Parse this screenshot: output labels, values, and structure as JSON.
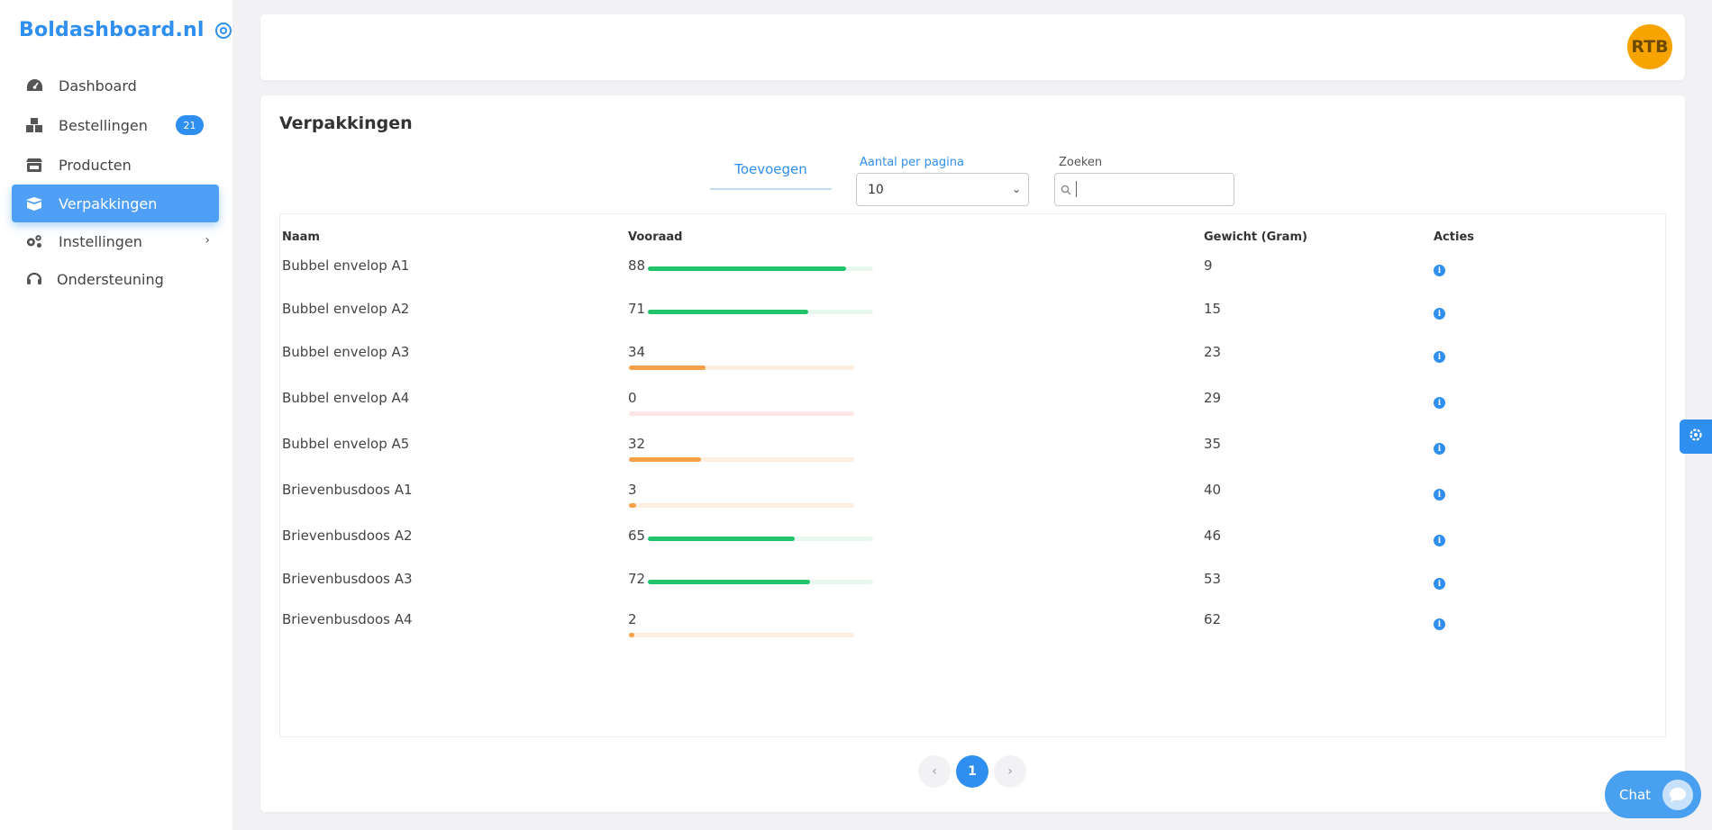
{
  "brand": {
    "name": "Boldashboard.nl"
  },
  "sidebar": {
    "items": [
      {
        "label": "Dashboard",
        "icon": "gauge-icon"
      },
      {
        "label": "Bestellingen",
        "icon": "boxes-icon",
        "badge": "21"
      },
      {
        "label": "Producten",
        "icon": "store-icon"
      },
      {
        "label": "Verpakkingen",
        "icon": "box-open-icon",
        "active": true
      },
      {
        "label": "Instellingen",
        "icon": "cogs-icon",
        "has_submenu": true
      },
      {
        "label": "Ondersteuning",
        "icon": "headset-icon"
      }
    ]
  },
  "header": {
    "avatar_initials": "RTB"
  },
  "page": {
    "title": "Verpakkingen",
    "add_label": "Toevoegen",
    "per_page_label": "Aantal per pagina",
    "per_page_value": "10",
    "search_label": "Zoeken",
    "search_value": ""
  },
  "table": {
    "columns": {
      "name": "Naam",
      "stock": "Vooraad",
      "weight": "Gewicht (Gram)",
      "actions": "Acties"
    },
    "rows": [
      {
        "name": "Bubbel envelop A1",
        "stock": "88",
        "level": 0.88,
        "status": "good",
        "weight": "9"
      },
      {
        "name": "Bubbel envelop A2",
        "stock": "71",
        "level": 0.71,
        "status": "good",
        "weight": "15"
      },
      {
        "name": "Bubbel envelop A3",
        "stock": "34",
        "level": 0.34,
        "status": "warning",
        "weight": "23"
      },
      {
        "name": "Bubbel envelop A4",
        "stock": "0",
        "level": 0.0,
        "status": "danger",
        "weight": "29"
      },
      {
        "name": "Bubbel envelop A5",
        "stock": "32",
        "level": 0.32,
        "status": "warning",
        "weight": "35"
      },
      {
        "name": "Brievenbusdoos A1",
        "stock": "3",
        "level": 0.03,
        "status": "warning",
        "weight": "40"
      },
      {
        "name": "Brievenbusdoos A2",
        "stock": "65",
        "level": 0.65,
        "status": "good",
        "weight": "46"
      },
      {
        "name": "Brievenbusdoos A3",
        "stock": "72",
        "level": 0.72,
        "status": "good",
        "weight": "53"
      },
      {
        "name": "Brievenbusdoos A4",
        "stock": "2",
        "level": 0.02,
        "status": "warning",
        "weight": "62"
      }
    ]
  },
  "pagination": {
    "prev": "‹",
    "current": "1",
    "next": "›"
  },
  "chat": {
    "label": "Chat"
  },
  "colors": {
    "accent": "#2f8ff0",
    "good": "#22c46b",
    "good_track": "#e8f8ef",
    "warning": "#f7a04a",
    "warning_track": "#fdeee2",
    "danger": "#f26d6d",
    "danger_track": "#fde6e6"
  }
}
